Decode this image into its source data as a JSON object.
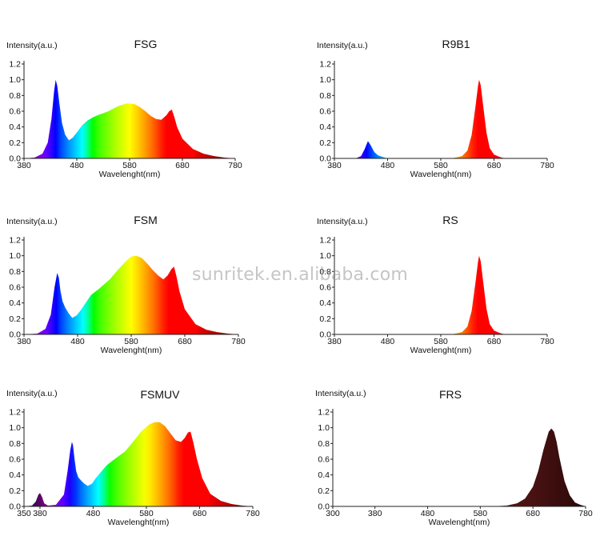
{
  "watermark": "sunritek.en.alibaba.com",
  "chart_data": [
    {
      "type": "area",
      "title": "FSG",
      "ylabel": "Intensity(a.u.)",
      "xlabel": "Wavelenght(nm)",
      "xlim": [
        380,
        780
      ],
      "ylim": [
        0,
        1.2
      ],
      "xticks": [
        "380",
        "480",
        "580",
        "680",
        "780"
      ],
      "yticks": [
        "0.0",
        "0.2",
        "0.4",
        "0.6",
        "0.8",
        "1.0",
        "1.2"
      ],
      "fill": "spectrum",
      "series": [
        {
          "x": [
            380,
            400,
            415,
            425,
            432,
            437,
            440,
            443,
            447,
            452,
            458,
            465,
            472,
            480,
            490,
            500,
            510,
            520,
            540,
            560,
            575,
            590,
            600,
            610,
            620,
            630,
            640,
            650,
            655,
            660,
            665,
            670,
            680,
            700,
            720,
            740,
            760,
            780
          ],
          "y": [
            0.0,
            0.01,
            0.06,
            0.2,
            0.5,
            0.85,
            1.0,
            0.92,
            0.7,
            0.45,
            0.3,
            0.23,
            0.26,
            0.33,
            0.42,
            0.48,
            0.52,
            0.55,
            0.6,
            0.67,
            0.7,
            0.69,
            0.65,
            0.6,
            0.54,
            0.5,
            0.49,
            0.55,
            0.6,
            0.62,
            0.52,
            0.4,
            0.25,
            0.12,
            0.06,
            0.03,
            0.01,
            0.0
          ]
        }
      ]
    },
    {
      "type": "area",
      "title": "R9B1",
      "ylabel": "Intensity(a.u.)",
      "xlabel": "Wavelenght(nm)",
      "xlim": [
        380,
        780
      ],
      "ylim": [
        0,
        1.2
      ],
      "xticks": [
        "380",
        "480",
        "580",
        "680",
        "780"
      ],
      "yticks": [
        "0.0",
        "0.2",
        "0.4",
        "0.6",
        "0.8",
        "1.0",
        "1.2"
      ],
      "fill": "spectrum",
      "series": [
        {
          "x": [
            380,
            420,
            430,
            437,
            443,
            448,
            455,
            462,
            470,
            480,
            600,
            620,
            630,
            638,
            645,
            650,
            652,
            655,
            660,
            666,
            672,
            680,
            690,
            700,
            780
          ],
          "y": [
            0.0,
            0.0,
            0.03,
            0.12,
            0.22,
            0.17,
            0.08,
            0.04,
            0.02,
            0.0,
            0.0,
            0.03,
            0.1,
            0.3,
            0.65,
            0.92,
            1.0,
            0.93,
            0.65,
            0.32,
            0.13,
            0.05,
            0.02,
            0.0,
            0.0
          ]
        }
      ]
    },
    {
      "type": "area",
      "title": "FSM",
      "ylabel": "Intensity(a.u.)",
      "xlabel": "Wavelenght(nm)",
      "xlim": [
        380,
        780
      ],
      "ylim": [
        0,
        1.2
      ],
      "xticks": [
        "380",
        "480",
        "580",
        "680",
        "780"
      ],
      "yticks": [
        "0.0",
        "0.2",
        "0.4",
        "0.6",
        "0.8",
        "1.0",
        "1.2"
      ],
      "fill": "spectrum",
      "series": [
        {
          "x": [
            380,
            405,
            420,
            430,
            437,
            442,
            445,
            448,
            452,
            457,
            463,
            470,
            478,
            485,
            495,
            505,
            520,
            540,
            555,
            570,
            580,
            590,
            600,
            610,
            620,
            630,
            640,
            648,
            655,
            660,
            665,
            670,
            680,
            700,
            720,
            740,
            760,
            780
          ],
          "y": [
            0.0,
            0.01,
            0.07,
            0.25,
            0.6,
            0.78,
            0.72,
            0.55,
            0.42,
            0.34,
            0.27,
            0.21,
            0.24,
            0.3,
            0.4,
            0.5,
            0.58,
            0.7,
            0.82,
            0.93,
            0.99,
            1.0,
            0.97,
            0.9,
            0.82,
            0.75,
            0.7,
            0.75,
            0.83,
            0.86,
            0.72,
            0.55,
            0.32,
            0.13,
            0.06,
            0.03,
            0.01,
            0.0
          ]
        }
      ]
    },
    {
      "type": "area",
      "title": "RS",
      "ylabel": "Intensity(a.u.)",
      "xlabel": "Wavelenght(nm)",
      "xlim": [
        380,
        780
      ],
      "ylim": [
        0,
        1.2
      ],
      "xticks": [
        "380",
        "480",
        "580",
        "680",
        "780"
      ],
      "yticks": [
        "0.0",
        "0.2",
        "0.4",
        "0.6",
        "0.8",
        "1.0",
        "1.2"
      ],
      "fill": "spectrum",
      "series": [
        {
          "x": [
            380,
            600,
            620,
            630,
            638,
            645,
            650,
            652,
            655,
            660,
            666,
            672,
            680,
            690,
            700,
            780
          ],
          "y": [
            0.0,
            0.0,
            0.03,
            0.1,
            0.3,
            0.65,
            0.92,
            1.0,
            0.93,
            0.65,
            0.32,
            0.13,
            0.05,
            0.02,
            0.0,
            0.0
          ]
        }
      ]
    },
    {
      "type": "area",
      "title": "FSMUV",
      "ylabel": "Intensity(a.u.)",
      "xlabel": "Wavelenght(nm)",
      "xlim": [
        350,
        780
      ],
      "ylim": [
        0,
        1.2
      ],
      "xticks": [
        "350",
        "380",
        "480",
        "580",
        "680",
        "780"
      ],
      "yticks": [
        "0.0",
        "0.2",
        "0.4",
        "0.6",
        "0.8",
        "1.0",
        "1.2"
      ],
      "fill": "spectrum",
      "series": [
        {
          "x": [
            350,
            365,
            372,
            377,
            380,
            384,
            388,
            395,
            410,
            425,
            432,
            437,
            440,
            442,
            445,
            448,
            452,
            457,
            463,
            470,
            478,
            485,
            495,
            505,
            520,
            540,
            555,
            570,
            585,
            595,
            605,
            615,
            625,
            635,
            645,
            652,
            658,
            663,
            668,
            675,
            685,
            700,
            720,
            740,
            760,
            780
          ],
          "y": [
            0.0,
            0.01,
            0.06,
            0.15,
            0.17,
            0.12,
            0.04,
            0.01,
            0.02,
            0.15,
            0.45,
            0.72,
            0.82,
            0.78,
            0.6,
            0.45,
            0.37,
            0.33,
            0.29,
            0.26,
            0.29,
            0.36,
            0.44,
            0.52,
            0.6,
            0.7,
            0.82,
            0.95,
            1.04,
            1.07,
            1.07,
            1.02,
            0.93,
            0.84,
            0.82,
            0.87,
            0.94,
            0.95,
            0.82,
            0.6,
            0.36,
            0.16,
            0.07,
            0.03,
            0.01,
            0.0
          ]
        }
      ]
    },
    {
      "type": "area",
      "title": "FRS",
      "ylabel": "Intensity(a.u.)",
      "xlabel": "Wavelenght(nm)",
      "xlim": [
        300,
        780
      ],
      "ylim": [
        0,
        1.2
      ],
      "xticks": [
        "300",
        "380",
        "480",
        "580",
        "680",
        "780"
      ],
      "yticks": [
        "0.0",
        "0.2",
        "0.4",
        "0.6",
        "0.8",
        "1.0",
        "1.2"
      ],
      "fill": "deep-red",
      "series": [
        {
          "x": [
            300,
            600,
            630,
            650,
            665,
            680,
            690,
            700,
            710,
            715,
            720,
            725,
            730,
            740,
            750,
            760,
            770,
            780
          ],
          "y": [
            0.0,
            0.0,
            0.01,
            0.04,
            0.1,
            0.25,
            0.45,
            0.72,
            0.95,
            0.99,
            0.95,
            0.82,
            0.63,
            0.32,
            0.14,
            0.05,
            0.02,
            0.0
          ]
        }
      ]
    }
  ]
}
